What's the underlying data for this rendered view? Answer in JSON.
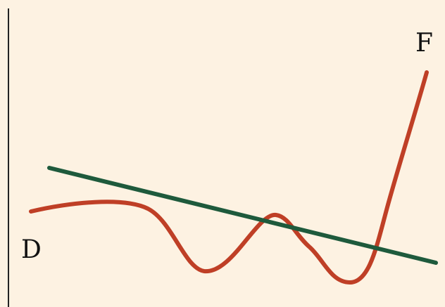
{
  "labels": {
    "start": "D",
    "end": "F"
  },
  "colors": {
    "background": "#fdf2e2",
    "curve": "#bf3f26",
    "line": "#1e5a3c",
    "axis": "#222222"
  }
}
